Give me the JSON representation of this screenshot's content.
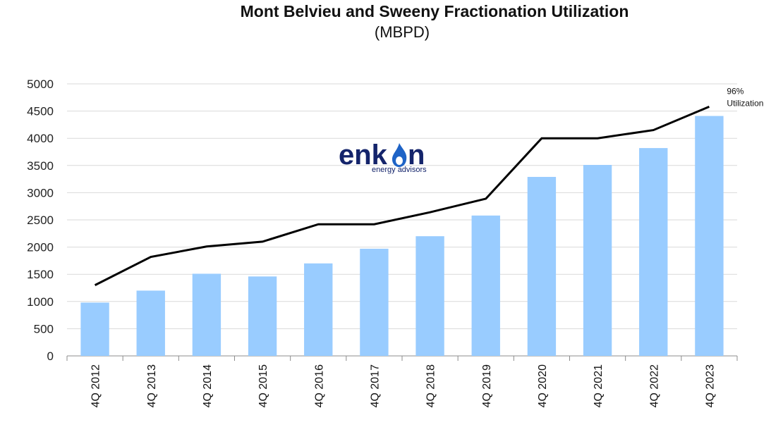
{
  "chart_data": {
    "type": "bar",
    "title": "Mont Belvieu and Sweeny Fractionation Utilization",
    "subtitle": "(MBPD)",
    "categories": [
      "4Q 2012",
      "4Q 2013",
      "4Q 2014",
      "4Q 2015",
      "4Q 2016",
      "4Q 2017",
      "4Q 2018",
      "4Q 2019",
      "4Q 2020",
      "4Q 2021",
      "4Q 2022",
      "4Q 2023"
    ],
    "series": [
      {
        "kind": "bar",
        "color": "#99ccff",
        "values": [
          980,
          1200,
          1510,
          1460,
          1700,
          1970,
          2200,
          2580,
          3290,
          3510,
          3820,
          4410
        ]
      },
      {
        "kind": "line",
        "color": "#000000",
        "values": [
          1300,
          1820,
          2010,
          2100,
          2420,
          2420,
          2640,
          2890,
          4000,
          4000,
          4150,
          4580
        ]
      }
    ],
    "y_ticks": [
      "0",
      "500",
      "1000",
      "1500",
      "2000",
      "2500",
      "3000",
      "3500",
      "4000",
      "4500",
      "5000"
    ],
    "ylim": [
      0,
      5000
    ],
    "grid": true,
    "annotations": [
      {
        "lines": [
          "96%",
          "Utilization"
        ],
        "near": "end of line series"
      }
    ]
  },
  "logo": {
    "name": "enkon",
    "tagline": "energy advisors",
    "icon": "flame-icon"
  }
}
